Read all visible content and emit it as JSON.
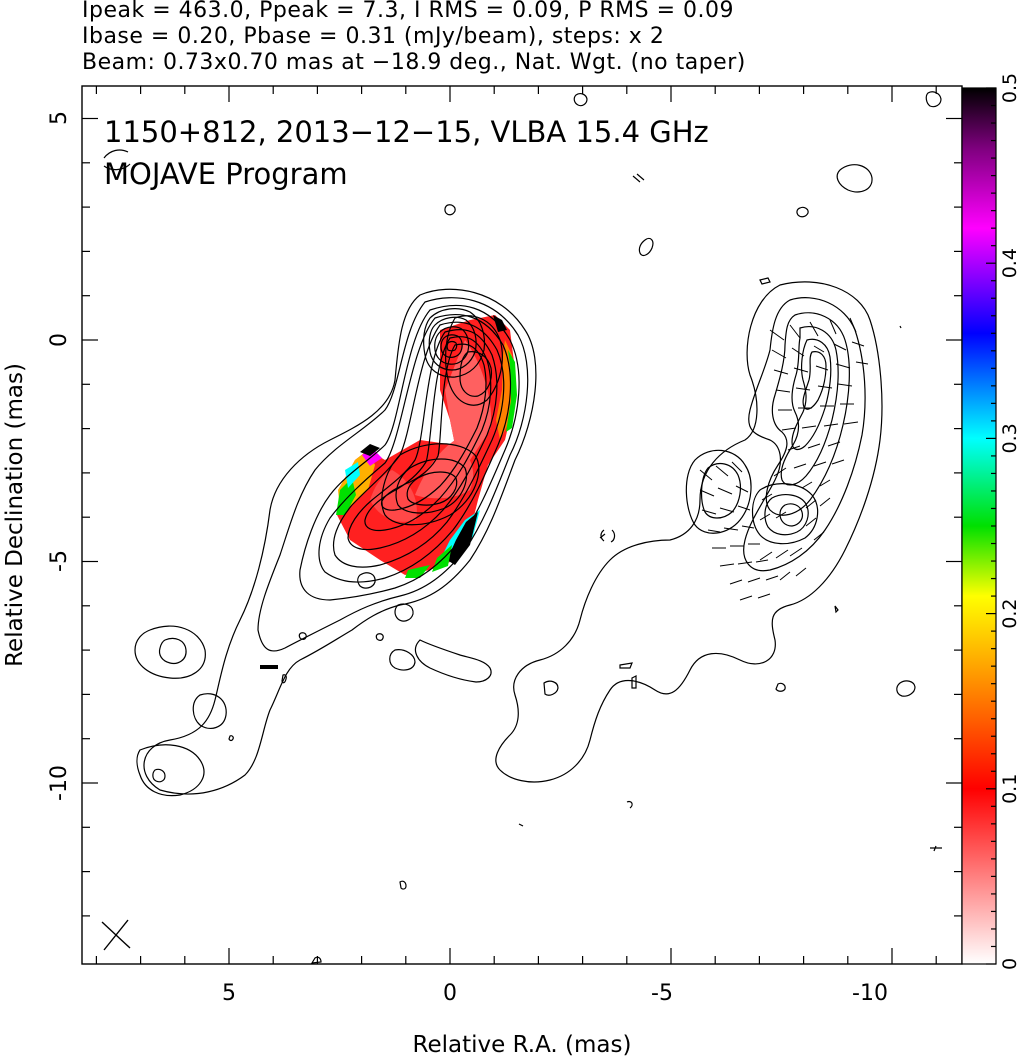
{
  "header": {
    "line1": "Ipeak = 463.0, Ppeak = 7.3, I RMS = 0.09, P RMS = 0.09",
    "line2": "Ibase = 0.20, Pbase = 0.31 (mJy/beam), steps: x 2",
    "line3": "Beam: 0.73x0.70 mas at −18.9 deg., Nat. Wgt. (no taper)"
  },
  "chart_data": {
    "type": "contour",
    "title": "1150+812, 2013−12−15, VLBA 15.4 GHz",
    "subtitle": "MOJAVE Program",
    "xlabel": "Relative R.A. (mas)",
    "ylabel": "Relative Declination (mas)",
    "xlim": [
      8.5,
      -12.0
    ],
    "ylim": [
      -14.0,
      5.8
    ],
    "x_ticks": [
      5,
      0,
      -5,
      -10
    ],
    "y_ticks": [
      5,
      0,
      -5,
      -10
    ],
    "colorbar": {
      "range": [
        0,
        0.5
      ],
      "ticks": [
        0,
        0.1,
        0.2,
        0.3,
        0.4,
        0.5
      ],
      "colors": [
        "#ffffff",
        "#ff7070",
        "#ff0000",
        "#ff8000",
        "#ffff00",
        "#00e000",
        "#00ffff",
        "#0000ff",
        "#ff00ff",
        "#000000"
      ]
    },
    "beam": {
      "major_mas": 0.73,
      "minor_mas": 0.7,
      "pa_deg": -18.9
    },
    "core": {
      "ra": 0.0,
      "dec": 0.0
    },
    "ridge": [
      [
        0.0,
        0.0
      ],
      [
        -0.6,
        -1.5
      ],
      [
        -1.0,
        -2.5
      ],
      [
        -0.5,
        -3.5
      ],
      [
        0.5,
        -4.2
      ],
      [
        1.5,
        -5.0
      ],
      [
        2.5,
        -6.0
      ],
      [
        3.8,
        -7.0
      ],
      [
        4.6,
        -8.5
      ],
      [
        6.5,
        -9.8
      ]
    ]
  }
}
